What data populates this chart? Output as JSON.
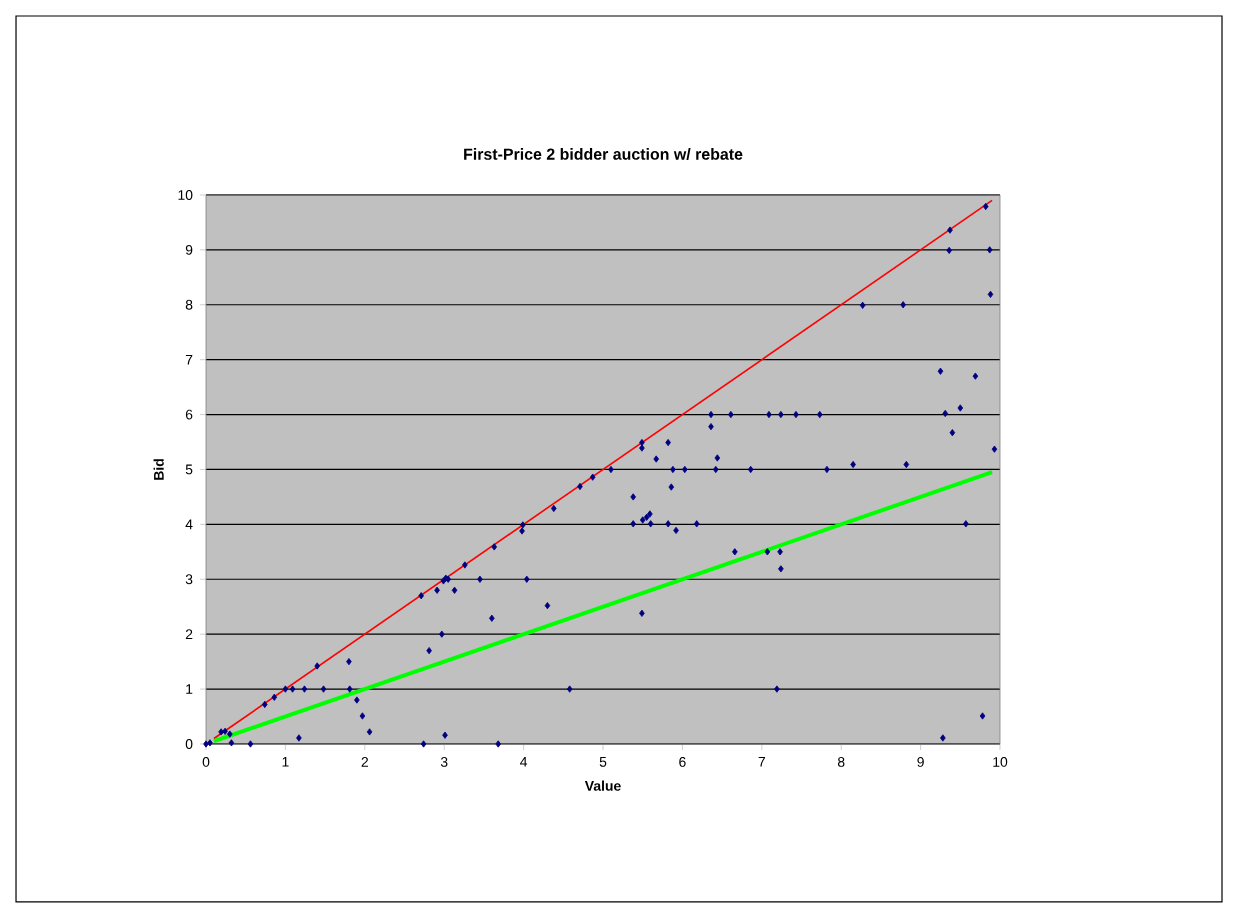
{
  "chart_data": {
    "type": "scatter",
    "title": "First-Price 2 bidder auction w/ rebate",
    "xlabel": "Value",
    "ylabel": "Bid",
    "xlim": [
      0,
      10
    ],
    "ylim": [
      0,
      10
    ],
    "xticks": [
      0,
      1,
      2,
      3,
      4,
      5,
      6,
      7,
      8,
      9,
      10
    ],
    "yticks": [
      0,
      1,
      2,
      3,
      4,
      5,
      6,
      7,
      8,
      9,
      10
    ],
    "grid": "y",
    "legend": false,
    "series": [
      {
        "marker": "diamond",
        "color": "#000080",
        "x": [
          0,
          0.05,
          0.19,
          0.24,
          0.3,
          0.32,
          0.56,
          0.74,
          0.86,
          1.0,
          1.09,
          1.17,
          1.24,
          1.4,
          1.48,
          1.8,
          1.81,
          1.9,
          1.97,
          2.06,
          2.71,
          2.74,
          2.81,
          2.91,
          2.97,
          2.99,
          3.02,
          3.05,
          3.01,
          3.13,
          3.26,
          3.45,
          3.6,
          3.63,
          3.68,
          3.99,
          3.98,
          4.04,
          4.3,
          4.38,
          4.58,
          4.71,
          4.87,
          5.1,
          5.38,
          5.38,
          5.49,
          5.49,
          5.5,
          5.55,
          5.59,
          5.6,
          5.49,
          5.67,
          5.82,
          5.82,
          5.86,
          5.88,
          5.92,
          6.03,
          6.18,
          6.36,
          6.36,
          6.42,
          6.44,
          6.61,
          6.66,
          6.86,
          7.09,
          7.07,
          7.23,
          7.24,
          7.24,
          7.19,
          7.43,
          7.73,
          7.82,
          8.15,
          8.82,
          9.31,
          9.5,
          9.4,
          9.57,
          9.93,
          9.28,
          9.78,
          9.82,
          9.37,
          9.36,
          9.87,
          9.88,
          8.27,
          8.78,
          9.25,
          9.69
        ],
        "values": [
          0,
          0.02,
          0.22,
          0.23,
          0.18,
          0.02,
          0,
          0.72,
          0.85,
          1.0,
          1.0,
          0.11,
          1.0,
          1.42,
          1.0,
          1.5,
          1.0,
          0.8,
          0.51,
          0.22,
          2.7,
          0,
          1.7,
          2.8,
          2.0,
          2.97,
          3.02,
          3.0,
          0.16,
          2.8,
          3.26,
          3.0,
          2.29,
          3.59,
          0,
          3.99,
          3.88,
          3.0,
          2.52,
          4.29,
          1.0,
          4.69,
          4.86,
          5.0,
          4.5,
          4.01,
          5.49,
          5.39,
          4.08,
          4.13,
          4.19,
          4.01,
          2.38,
          5.19,
          5.49,
          4.01,
          4.68,
          5.0,
          3.89,
          5.0,
          4.01,
          6.0,
          5.78,
          5.0,
          5.21,
          6.0,
          3.5,
          5.0,
          6.0,
          3.5,
          3.5,
          6.0,
          3.19,
          1.0,
          6.0,
          6.0,
          5.0,
          5.09,
          5.09,
          6.02,
          6.12,
          5.67,
          4.01,
          5.37,
          0.11,
          0.51,
          9.79,
          9.36,
          8.99,
          9.0,
          8.19,
          7.99,
          8.0,
          6.79,
          6.7
        ]
      },
      {
        "type": "line",
        "marker": "none",
        "color": "#ff0000",
        "x": [
          0.1,
          9.9
        ],
        "values": [
          0.1,
          9.9
        ]
      },
      {
        "type": "line",
        "marker": "none",
        "color": "#00ff00",
        "x": [
          0.1,
          9.9
        ],
        "values": [
          0.05,
          4.95
        ]
      }
    ]
  }
}
